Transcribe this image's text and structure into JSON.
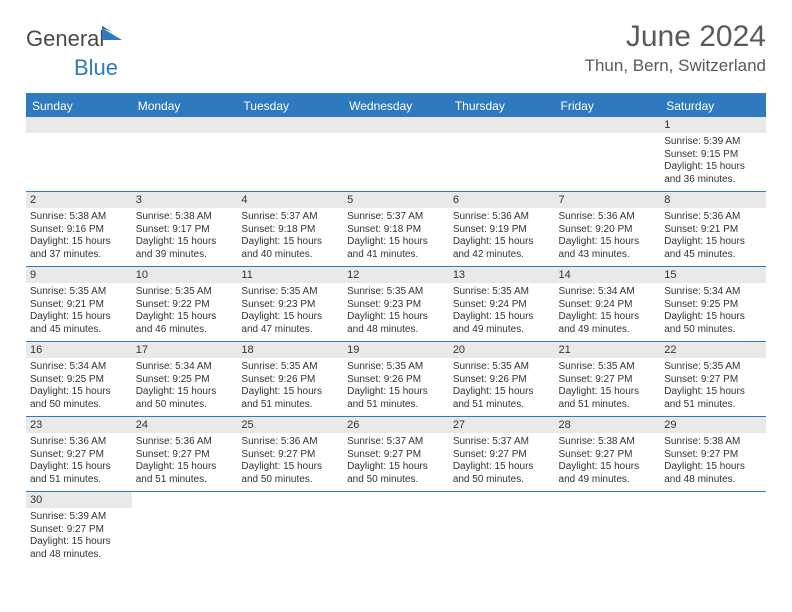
{
  "brand": {
    "name_a": "General",
    "name_b": "Blue",
    "flag_color": "#2f7abf",
    "text_color": "#4a4a4a"
  },
  "title": "June 2024",
  "location": "Thun, Bern, Switzerland",
  "colors": {
    "header_bg": "#2f7abf",
    "header_text": "#ffffff",
    "dayrow_bg": "#e9e9e9",
    "border": "#2f7abf"
  },
  "day_headers": [
    "Sunday",
    "Monday",
    "Tuesday",
    "Wednesday",
    "Thursday",
    "Friday",
    "Saturday"
  ],
  "weeks": [
    [
      null,
      null,
      null,
      null,
      null,
      null,
      {
        "n": "1",
        "sr": "Sunrise: 5:39 AM",
        "ss": "Sunset: 9:15 PM",
        "dl1": "Daylight: 15 hours",
        "dl2": "and 36 minutes."
      }
    ],
    [
      {
        "n": "2",
        "sr": "Sunrise: 5:38 AM",
        "ss": "Sunset: 9:16 PM",
        "dl1": "Daylight: 15 hours",
        "dl2": "and 37 minutes."
      },
      {
        "n": "3",
        "sr": "Sunrise: 5:38 AM",
        "ss": "Sunset: 9:17 PM",
        "dl1": "Daylight: 15 hours",
        "dl2": "and 39 minutes."
      },
      {
        "n": "4",
        "sr": "Sunrise: 5:37 AM",
        "ss": "Sunset: 9:18 PM",
        "dl1": "Daylight: 15 hours",
        "dl2": "and 40 minutes."
      },
      {
        "n": "5",
        "sr": "Sunrise: 5:37 AM",
        "ss": "Sunset: 9:18 PM",
        "dl1": "Daylight: 15 hours",
        "dl2": "and 41 minutes."
      },
      {
        "n": "6",
        "sr": "Sunrise: 5:36 AM",
        "ss": "Sunset: 9:19 PM",
        "dl1": "Daylight: 15 hours",
        "dl2": "and 42 minutes."
      },
      {
        "n": "7",
        "sr": "Sunrise: 5:36 AM",
        "ss": "Sunset: 9:20 PM",
        "dl1": "Daylight: 15 hours",
        "dl2": "and 43 minutes."
      },
      {
        "n": "8",
        "sr": "Sunrise: 5:36 AM",
        "ss": "Sunset: 9:21 PM",
        "dl1": "Daylight: 15 hours",
        "dl2": "and 45 minutes."
      }
    ],
    [
      {
        "n": "9",
        "sr": "Sunrise: 5:35 AM",
        "ss": "Sunset: 9:21 PM",
        "dl1": "Daylight: 15 hours",
        "dl2": "and 45 minutes."
      },
      {
        "n": "10",
        "sr": "Sunrise: 5:35 AM",
        "ss": "Sunset: 9:22 PM",
        "dl1": "Daylight: 15 hours",
        "dl2": "and 46 minutes."
      },
      {
        "n": "11",
        "sr": "Sunrise: 5:35 AM",
        "ss": "Sunset: 9:23 PM",
        "dl1": "Daylight: 15 hours",
        "dl2": "and 47 minutes."
      },
      {
        "n": "12",
        "sr": "Sunrise: 5:35 AM",
        "ss": "Sunset: 9:23 PM",
        "dl1": "Daylight: 15 hours",
        "dl2": "and 48 minutes."
      },
      {
        "n": "13",
        "sr": "Sunrise: 5:35 AM",
        "ss": "Sunset: 9:24 PM",
        "dl1": "Daylight: 15 hours",
        "dl2": "and 49 minutes."
      },
      {
        "n": "14",
        "sr": "Sunrise: 5:34 AM",
        "ss": "Sunset: 9:24 PM",
        "dl1": "Daylight: 15 hours",
        "dl2": "and 49 minutes."
      },
      {
        "n": "15",
        "sr": "Sunrise: 5:34 AM",
        "ss": "Sunset: 9:25 PM",
        "dl1": "Daylight: 15 hours",
        "dl2": "and 50 minutes."
      }
    ],
    [
      {
        "n": "16",
        "sr": "Sunrise: 5:34 AM",
        "ss": "Sunset: 9:25 PM",
        "dl1": "Daylight: 15 hours",
        "dl2": "and 50 minutes."
      },
      {
        "n": "17",
        "sr": "Sunrise: 5:34 AM",
        "ss": "Sunset: 9:25 PM",
        "dl1": "Daylight: 15 hours",
        "dl2": "and 50 minutes."
      },
      {
        "n": "18",
        "sr": "Sunrise: 5:35 AM",
        "ss": "Sunset: 9:26 PM",
        "dl1": "Daylight: 15 hours",
        "dl2": "and 51 minutes."
      },
      {
        "n": "19",
        "sr": "Sunrise: 5:35 AM",
        "ss": "Sunset: 9:26 PM",
        "dl1": "Daylight: 15 hours",
        "dl2": "and 51 minutes."
      },
      {
        "n": "20",
        "sr": "Sunrise: 5:35 AM",
        "ss": "Sunset: 9:26 PM",
        "dl1": "Daylight: 15 hours",
        "dl2": "and 51 minutes."
      },
      {
        "n": "21",
        "sr": "Sunrise: 5:35 AM",
        "ss": "Sunset: 9:27 PM",
        "dl1": "Daylight: 15 hours",
        "dl2": "and 51 minutes."
      },
      {
        "n": "22",
        "sr": "Sunrise: 5:35 AM",
        "ss": "Sunset: 9:27 PM",
        "dl1": "Daylight: 15 hours",
        "dl2": "and 51 minutes."
      }
    ],
    [
      {
        "n": "23",
        "sr": "Sunrise: 5:36 AM",
        "ss": "Sunset: 9:27 PM",
        "dl1": "Daylight: 15 hours",
        "dl2": "and 51 minutes."
      },
      {
        "n": "24",
        "sr": "Sunrise: 5:36 AM",
        "ss": "Sunset: 9:27 PM",
        "dl1": "Daylight: 15 hours",
        "dl2": "and 51 minutes."
      },
      {
        "n": "25",
        "sr": "Sunrise: 5:36 AM",
        "ss": "Sunset: 9:27 PM",
        "dl1": "Daylight: 15 hours",
        "dl2": "and 50 minutes."
      },
      {
        "n": "26",
        "sr": "Sunrise: 5:37 AM",
        "ss": "Sunset: 9:27 PM",
        "dl1": "Daylight: 15 hours",
        "dl2": "and 50 minutes."
      },
      {
        "n": "27",
        "sr": "Sunrise: 5:37 AM",
        "ss": "Sunset: 9:27 PM",
        "dl1": "Daylight: 15 hours",
        "dl2": "and 50 minutes."
      },
      {
        "n": "28",
        "sr": "Sunrise: 5:38 AM",
        "ss": "Sunset: 9:27 PM",
        "dl1": "Daylight: 15 hours",
        "dl2": "and 49 minutes."
      },
      {
        "n": "29",
        "sr": "Sunrise: 5:38 AM",
        "ss": "Sunset: 9:27 PM",
        "dl1": "Daylight: 15 hours",
        "dl2": "and 48 minutes."
      }
    ],
    [
      {
        "n": "30",
        "sr": "Sunrise: 5:39 AM",
        "ss": "Sunset: 9:27 PM",
        "dl1": "Daylight: 15 hours",
        "dl2": "and 48 minutes."
      },
      null,
      null,
      null,
      null,
      null,
      null
    ]
  ]
}
